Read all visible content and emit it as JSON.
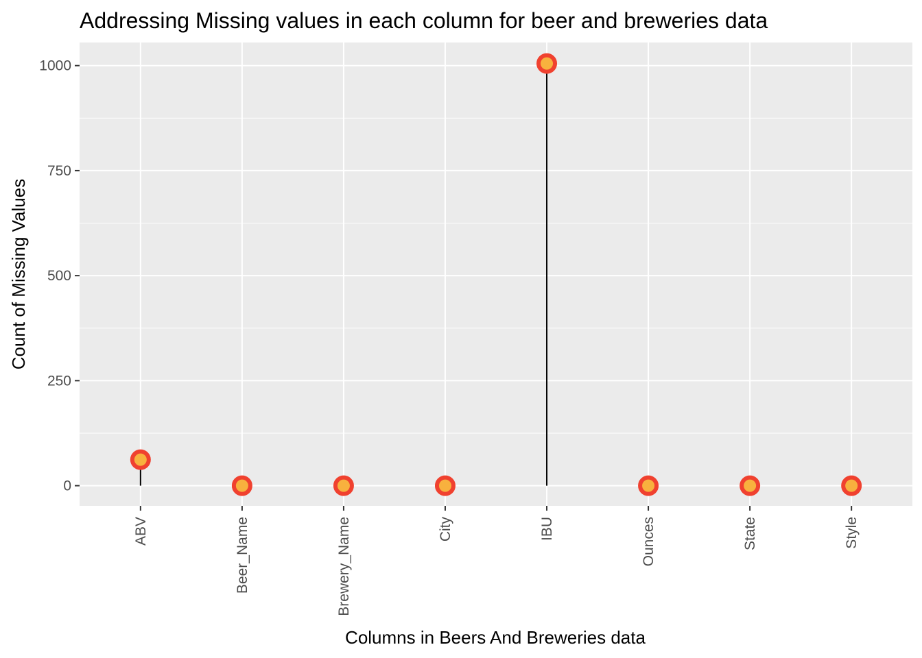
{
  "chart_data": {
    "type": "lollipop",
    "title": "Addressing Missing values in each column for beer and breweries data",
    "xlabel": "Columns in Beers And Breweries data",
    "ylabel": "Count of Missing Values",
    "categories": [
      "ABV",
      "Beer_Name",
      "Brewery_Name",
      "City",
      "IBU",
      "Ounces",
      "State",
      "Style"
    ],
    "values": [
      62,
      0,
      0,
      0,
      1005,
      0,
      0,
      0
    ],
    "yticks": [
      0,
      250,
      500,
      750,
      1000
    ],
    "ytick_labels": [
      "0",
      "250",
      "500",
      "750",
      "1000"
    ],
    "ylim": [
      -48,
      1055
    ],
    "grid": true,
    "x_tick_label_rotation": -90,
    "colors": {
      "panel_background": "#ebebeb",
      "grid": "#ffffff",
      "stem": "#000000",
      "point_outline": "#f0412f",
      "point_fill": "#f8b13e"
    }
  }
}
